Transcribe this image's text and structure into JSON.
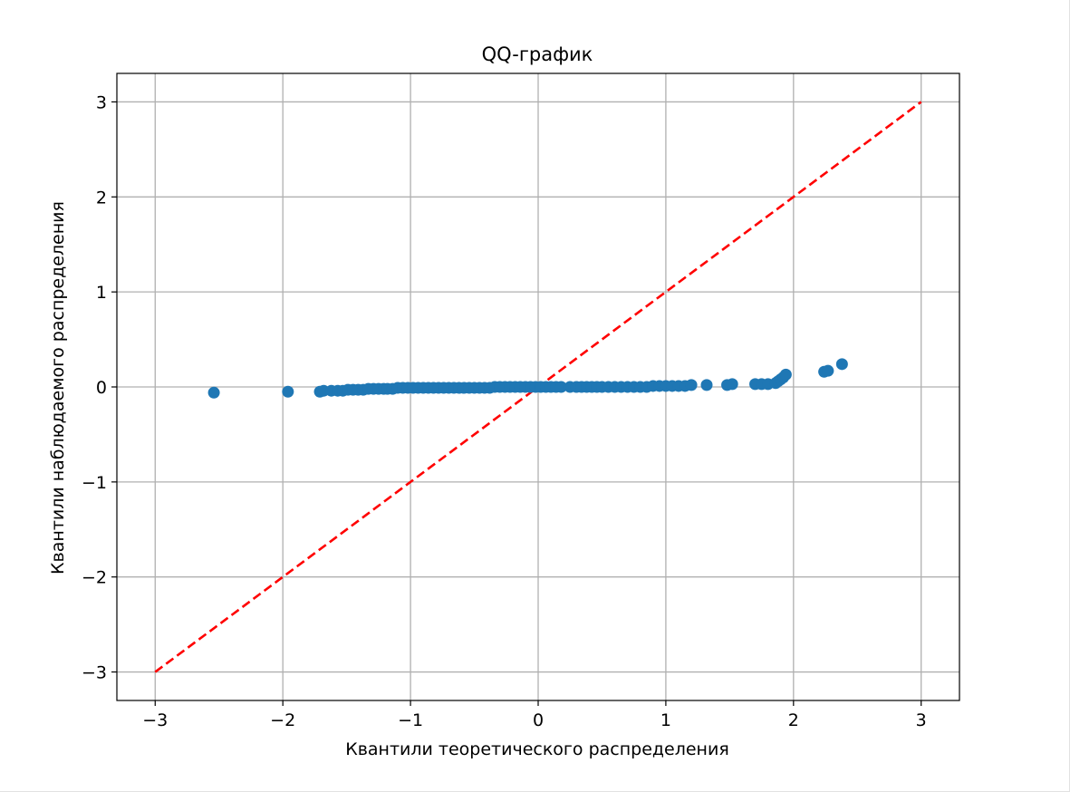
{
  "chart_data": {
    "type": "scatter",
    "title": "QQ-график",
    "xlabel": "Квантили теоретического распределения",
    "ylabel": "Квантили наблюдаемого распределения",
    "xlim": [
      -3.3,
      3.3
    ],
    "ylim": [
      -3.3,
      3.3
    ],
    "xticks": [
      -3,
      -2,
      -1,
      0,
      1,
      2,
      3
    ],
    "yticks": [
      -3,
      -2,
      -1,
      0,
      1,
      2,
      3
    ],
    "xtick_labels": [
      "−3",
      "−2",
      "−1",
      "0",
      "1",
      "2",
      "3"
    ],
    "ytick_labels": [
      "−3",
      "−2",
      "−1",
      "0",
      "1",
      "2",
      "3"
    ],
    "grid": true,
    "colors": {
      "points": "#1f77b4",
      "reference_line": "#ff0000",
      "grid": "#b0b0b0",
      "axes": "#000000"
    },
    "series": [
      {
        "marker": "circle",
        "x": [
          -2.54,
          -1.96,
          -1.71,
          -1.68,
          -1.62,
          -1.57,
          -1.53,
          -1.49,
          -1.45,
          -1.41,
          -1.37,
          -1.33,
          -1.29,
          -1.25,
          -1.21,
          -1.18,
          -1.14,
          -1.1,
          -1.06,
          -1.02,
          -0.98,
          -0.94,
          -0.9,
          -0.86,
          -0.82,
          -0.78,
          -0.74,
          -0.7,
          -0.66,
          -0.62,
          -0.58,
          -0.54,
          -0.5,
          -0.46,
          -0.42,
          -0.38,
          -0.34,
          -0.3,
          -0.26,
          -0.22,
          -0.18,
          -0.14,
          -0.1,
          -0.06,
          -0.02,
          0.02,
          0.06,
          0.1,
          0.14,
          0.18,
          0.25,
          0.3,
          0.34,
          0.38,
          0.42,
          0.46,
          0.5,
          0.55,
          0.6,
          0.65,
          0.7,
          0.75,
          0.8,
          0.85,
          0.9,
          0.95,
          1.0,
          1.05,
          1.1,
          1.15,
          1.2,
          1.32,
          1.48,
          1.52,
          1.7,
          1.75,
          1.8,
          1.86,
          1.88,
          1.9,
          1.92,
          1.94,
          2.24,
          2.27,
          2.38
        ],
        "y": [
          -0.06,
          -0.05,
          -0.05,
          -0.04,
          -0.04,
          -0.04,
          -0.04,
          -0.03,
          -0.03,
          -0.03,
          -0.03,
          -0.02,
          -0.02,
          -0.02,
          -0.02,
          -0.02,
          -0.02,
          -0.01,
          -0.01,
          -0.01,
          -0.01,
          -0.01,
          -0.01,
          -0.01,
          -0.01,
          -0.01,
          -0.01,
          -0.01,
          -0.01,
          -0.01,
          -0.01,
          -0.01,
          -0.01,
          -0.01,
          -0.01,
          -0.01,
          0.0,
          0.0,
          0.0,
          0.0,
          0.0,
          0.0,
          0.0,
          0.0,
          0.0,
          0.0,
          0.0,
          0.0,
          0.0,
          0.0,
          0.0,
          0.0,
          0.0,
          0.0,
          0.0,
          0.0,
          0.0,
          0.0,
          0.0,
          0.0,
          0.0,
          0.0,
          0.0,
          0.0,
          0.01,
          0.01,
          0.01,
          0.01,
          0.01,
          0.01,
          0.02,
          0.02,
          0.02,
          0.03,
          0.03,
          0.03,
          0.03,
          0.04,
          0.06,
          0.08,
          0.1,
          0.13,
          0.16,
          0.17,
          0.24
        ]
      }
    ],
    "reference_line": {
      "style": "dashed",
      "x": [
        -3,
        3
      ],
      "y": [
        -3,
        3
      ]
    }
  }
}
